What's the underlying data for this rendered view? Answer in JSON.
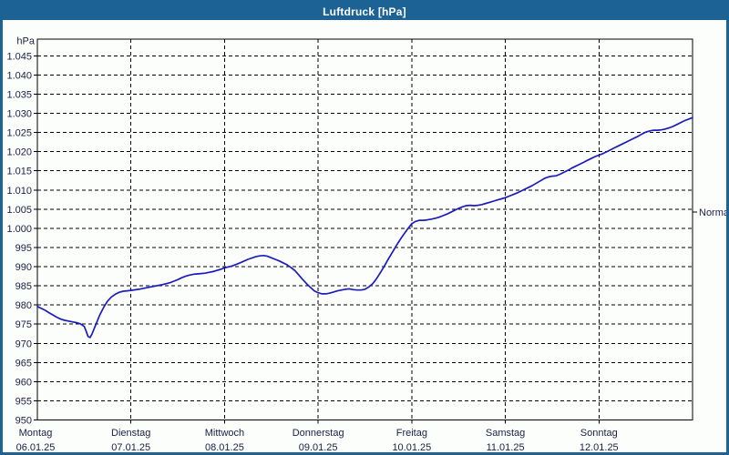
{
  "window": {
    "title": "Luftdruck [hPa]"
  },
  "colors": {
    "titlebar_bg": "#1d6294",
    "titlebar_text": "#ffffff",
    "frame_border": "#1d6294",
    "background": "#fcfefb",
    "axis": "#000000",
    "grid": "#000000",
    "curve": "#1c1cbe",
    "label_text": "#20204a"
  },
  "chart_data": {
    "type": "line",
    "title": "Luftdruck [hPa]",
    "ylabel": "hPa",
    "ylim": [
      950,
      1049
    ],
    "grid": "dashed",
    "legend_position": "none",
    "y_ticks": [
      {
        "value": 1045,
        "label": "1.045"
      },
      {
        "value": 1040,
        "label": "1.040"
      },
      {
        "value": 1035,
        "label": "1.035"
      },
      {
        "value": 1030,
        "label": "1.030"
      },
      {
        "value": 1025,
        "label": "1.025"
      },
      {
        "value": 1020,
        "label": "1.020"
      },
      {
        "value": 1015,
        "label": "1.015"
      },
      {
        "value": 1010,
        "label": "1.010"
      },
      {
        "value": 1005,
        "label": "1.005"
      },
      {
        "value": 1000,
        "label": "1.000"
      },
      {
        "value": 995,
        "label": "995"
      },
      {
        "value": 990,
        "label": "990"
      },
      {
        "value": 985,
        "label": "985"
      },
      {
        "value": 980,
        "label": "980"
      },
      {
        "value": 975,
        "label": "975"
      },
      {
        "value": 970,
        "label": "970"
      },
      {
        "value": 965,
        "label": "965"
      },
      {
        "value": 960,
        "label": "960"
      },
      {
        "value": 955,
        "label": "955"
      },
      {
        "value": 950,
        "label": "950"
      }
    ],
    "x_days": [
      {
        "name": "Montag",
        "date": "06.01.25"
      },
      {
        "name": "Dienstag",
        "date": "07.01.25"
      },
      {
        "name": "Mittwoch",
        "date": "08.01.25"
      },
      {
        "name": "Donnerstag",
        "date": "09.01.25"
      },
      {
        "name": "Freitag",
        "date": "10.01.25"
      },
      {
        "name": "Samstag",
        "date": "11.01.25"
      },
      {
        "name": "Sonntag",
        "date": "12.01.25"
      }
    ],
    "normal_marker": {
      "label": "Normal",
      "value": 1004.3
    },
    "series": [
      {
        "name": "Luftdruck",
        "unit": "hPa",
        "x_unit": "hours_from_monday_00:00",
        "points": [
          [
            0,
            979.6
          ],
          [
            1,
            979.1
          ],
          [
            2,
            978.6
          ],
          [
            3,
            978.0
          ],
          [
            4,
            977.4
          ],
          [
            5,
            976.8
          ],
          [
            6,
            976.3
          ],
          [
            7,
            976.0
          ],
          [
            8,
            975.8
          ],
          [
            9,
            975.6
          ],
          [
            10,
            975.4
          ],
          [
            11,
            975.1
          ],
          [
            12,
            974.4
          ],
          [
            12.5,
            973.2
          ],
          [
            13,
            971.8
          ],
          [
            13.5,
            971.5
          ],
          [
            14,
            972.4
          ],
          [
            15,
            974.9
          ],
          [
            16,
            977.4
          ],
          [
            17,
            979.4
          ],
          [
            18,
            981.0
          ],
          [
            19,
            982.1
          ],
          [
            20,
            982.8
          ],
          [
            21,
            983.3
          ],
          [
            22,
            983.6
          ],
          [
            23,
            983.7
          ],
          [
            24,
            983.8
          ],
          [
            26,
            984.1
          ],
          [
            28,
            984.5
          ],
          [
            30,
            984.9
          ],
          [
            32,
            985.3
          ],
          [
            34,
            985.8
          ],
          [
            35,
            986.2
          ],
          [
            36,
            986.6
          ],
          [
            37,
            987.1
          ],
          [
            38,
            987.5
          ],
          [
            39,
            987.8
          ],
          [
            40,
            988.0
          ],
          [
            41,
            988.1
          ],
          [
            42,
            988.2
          ],
          [
            43,
            988.3
          ],
          [
            44,
            988.5
          ],
          [
            45,
            988.7
          ],
          [
            46,
            989.0
          ],
          [
            47,
            989.3
          ],
          [
            48,
            989.7
          ],
          [
            50,
            990.2
          ],
          [
            52,
            991.0
          ],
          [
            54,
            991.9
          ],
          [
            56,
            992.6
          ],
          [
            57,
            992.8
          ],
          [
            58,
            992.9
          ],
          [
            59,
            992.7
          ],
          [
            60,
            992.3
          ],
          [
            61,
            991.9
          ],
          [
            62,
            991.5
          ],
          [
            63,
            991.0
          ],
          [
            64,
            990.5
          ],
          [
            65,
            989.8
          ],
          [
            66,
            989.0
          ],
          [
            67,
            987.9
          ],
          [
            68,
            986.7
          ],
          [
            69,
            985.6
          ],
          [
            70,
            984.6
          ],
          [
            71,
            983.7
          ],
          [
            72,
            983.2
          ],
          [
            73,
            982.9
          ],
          [
            74,
            982.9
          ],
          [
            75,
            983.1
          ],
          [
            76,
            983.4
          ],
          [
            77,
            983.7
          ],
          [
            78,
            983.9
          ],
          [
            79,
            984.1
          ],
          [
            80,
            984.2
          ],
          [
            81,
            984.0
          ],
          [
            82,
            983.9
          ],
          [
            83,
            983.9
          ],
          [
            84,
            984.1
          ],
          [
            85,
            984.7
          ],
          [
            86,
            985.6
          ],
          [
            87,
            986.9
          ],
          [
            88,
            988.5
          ],
          [
            89,
            990.2
          ],
          [
            90,
            992.0
          ],
          [
            91,
            993.7
          ],
          [
            92,
            995.4
          ],
          [
            93,
            997.0
          ],
          [
            94,
            998.5
          ],
          [
            95,
            999.9
          ],
          [
            96,
            1001.2
          ],
          [
            97,
            1001.8
          ],
          [
            98,
            1002.1
          ],
          [
            99,
            1002.1
          ],
          [
            100,
            1002.2
          ],
          [
            101,
            1002.4
          ],
          [
            102,
            1002.6
          ],
          [
            103,
            1002.9
          ],
          [
            104,
            1003.3
          ],
          [
            105,
            1003.7
          ],
          [
            106,
            1004.2
          ],
          [
            107,
            1004.7
          ],
          [
            108,
            1005.2
          ],
          [
            109,
            1005.6
          ],
          [
            110,
            1005.9
          ],
          [
            111,
            1006.0
          ],
          [
            112,
            1005.9
          ],
          [
            113,
            1006.0
          ],
          [
            114,
            1006.2
          ],
          [
            115,
            1006.5
          ],
          [
            116,
            1006.8
          ],
          [
            117,
            1007.1
          ],
          [
            118,
            1007.4
          ],
          [
            119,
            1007.7
          ],
          [
            120,
            1008.0
          ],
          [
            121,
            1008.4
          ],
          [
            122,
            1008.8
          ],
          [
            123,
            1009.2
          ],
          [
            124,
            1009.7
          ],
          [
            125,
            1010.2
          ],
          [
            126,
            1010.7
          ],
          [
            127,
            1011.2
          ],
          [
            128,
            1011.8
          ],
          [
            129,
            1012.4
          ],
          [
            130,
            1013.0
          ],
          [
            131,
            1013.4
          ],
          [
            132,
            1013.6
          ],
          [
            133,
            1013.7
          ],
          [
            134,
            1014.1
          ],
          [
            135,
            1014.6
          ],
          [
            136,
            1015.1
          ],
          [
            137,
            1015.7
          ],
          [
            138,
            1016.2
          ],
          [
            139,
            1016.7
          ],
          [
            140,
            1017.2
          ],
          [
            141,
            1017.7
          ],
          [
            142,
            1018.2
          ],
          [
            143,
            1018.7
          ],
          [
            144,
            1019.1
          ],
          [
            145,
            1019.5
          ],
          [
            146,
            1020.0
          ],
          [
            147,
            1020.5
          ],
          [
            148,
            1021.0
          ],
          [
            149,
            1021.5
          ],
          [
            150,
            1022.0
          ],
          [
            151,
            1022.5
          ],
          [
            152,
            1023.0
          ],
          [
            153,
            1023.5
          ],
          [
            154,
            1024.0
          ],
          [
            155,
            1024.6
          ],
          [
            156,
            1025.1
          ],
          [
            157,
            1025.4
          ],
          [
            158,
            1025.6
          ],
          [
            159,
            1025.6
          ],
          [
            160,
            1025.7
          ],
          [
            161,
            1025.9
          ],
          [
            162,
            1026.2
          ],
          [
            163,
            1026.6
          ],
          [
            164,
            1027.1
          ],
          [
            165,
            1027.6
          ],
          [
            166,
            1028.1
          ],
          [
            167,
            1028.5
          ],
          [
            168,
            1028.9
          ]
        ]
      }
    ]
  }
}
